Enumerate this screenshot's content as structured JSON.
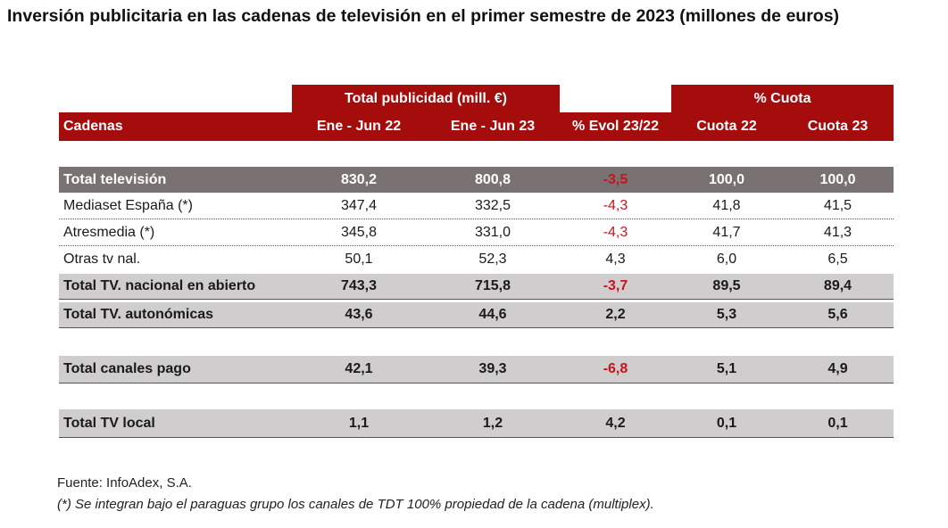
{
  "title": "Inversión publicitaria en las cadenas de televisión en el primer semestre de 2023 (millones de euros)",
  "colors": {
    "header_bg": "#a50d0d",
    "total_bg": "#7a7272",
    "subtotal_bg": "#cfcdcd",
    "negative": "#c8141e"
  },
  "table": {
    "group_headers": {
      "total": "Total publicidad (mill. €)",
      "cuota": "% Cuota"
    },
    "columns": [
      "Cadenas",
      "Ene - Jun  22",
      "Ene - Jun  23",
      "% Evol 23/22",
      "Cuota  22",
      "Cuota 23"
    ],
    "rows": [
      {
        "cells": [
          "Total televisión",
          "830,2",
          "800,8",
          "-3,5",
          "100,0",
          "100,0"
        ],
        "evol_negative": true
      },
      {
        "cells": [
          "Mediaset España (*)",
          "347,4",
          "332,5",
          "-4,3",
          "41,8",
          "41,5"
        ],
        "evol_negative": true
      },
      {
        "cells": [
          "Atresmedia (*)",
          "345,8",
          "331,0",
          "-4,3",
          "41,7",
          "41,3"
        ],
        "evol_negative": true
      },
      {
        "cells": [
          "Otras tv nal.",
          "50,1",
          "52,3",
          "4,3",
          "6,0",
          "6,5"
        ],
        "evol_negative": false
      },
      {
        "cells": [
          "Total TV. nacional en abierto",
          "743,3",
          "715,8",
          "-3,7",
          "89,5",
          "89,4"
        ],
        "evol_negative": true
      },
      {
        "cells": [
          "Total TV. autonómicas",
          "43,6",
          "44,6",
          "2,2",
          "5,3",
          "5,6"
        ],
        "evol_negative": false
      },
      {
        "cells": [
          "Total canales pago",
          "42,1",
          "39,3",
          "-6,8",
          "5,1",
          "4,9"
        ],
        "evol_negative": true
      },
      {
        "cells": [
          "Total TV local",
          "1,1",
          "1,2",
          "4,2",
          "0,1",
          "0,1"
        ],
        "evol_negative": false
      }
    ]
  },
  "footer": {
    "source": "Fuente: InfoAdex, S.A.",
    "note": "(*) Se integran bajo el paraguas grupo los canales de TDT 100% propiedad de la cadena (multiplex)."
  }
}
